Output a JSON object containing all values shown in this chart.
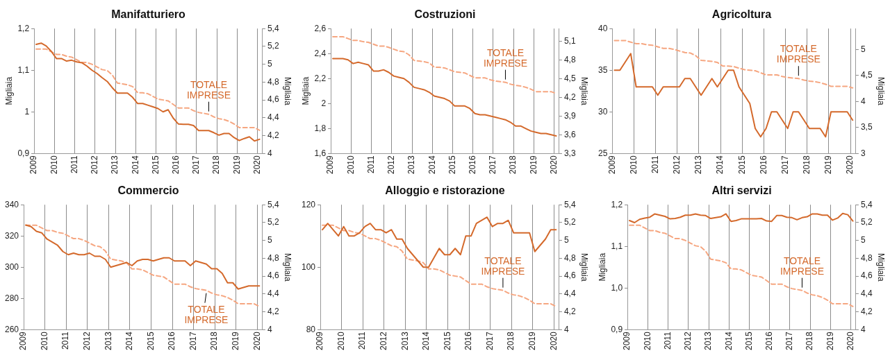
{
  "chart_data": [
    {
      "type": "line",
      "title": "Manifatturiero",
      "ylabel": "Migliaia",
      "y2label": "Migliaia",
      "grid": "x",
      "marker": "none",
      "x": [
        2009.1,
        2009.35,
        2009.6,
        2009.85,
        2010.1,
        2010.35,
        2010.6,
        2010.85,
        2011.1,
        2011.35,
        2011.6,
        2011.85,
        2012.1,
        2012.35,
        2012.6,
        2012.85,
        2013.1,
        2013.35,
        2013.6,
        2013.85,
        2014.1,
        2014.35,
        2014.6,
        2014.85,
        2015.1,
        2015.35,
        2015.6,
        2015.85,
        2016.1,
        2016.35,
        2016.6,
        2016.85,
        2017.1,
        2017.35,
        2017.6,
        2017.85,
        2018.1,
        2018.35,
        2018.6,
        2018.85,
        2019.1,
        2019.35,
        2019.6,
        2019.85,
        2020.1
      ],
      "xlim": [
        2009,
        2020.25
      ],
      "xticks": [
        2009,
        2010,
        2011,
        2012,
        2013,
        2014,
        2015,
        2016,
        2017,
        2018,
        2019,
        2020
      ],
      "ylim": [
        0.9,
        1.2
      ],
      "yticks": [
        {
          "value": 0.9,
          "label": "0,9"
        },
        1,
        {
          "value": 1.1,
          "label": "1,1"
        },
        {
          "value": 1.2,
          "label": "1,2"
        }
      ],
      "y2lim": [
        4,
        5.4
      ],
      "y2ticks": [
        4,
        {
          "value": 4.2,
          "label": "4,2"
        },
        {
          "value": 4.4,
          "label": "4,4"
        },
        {
          "value": 4.6,
          "label": "4,6"
        },
        {
          "value": 4.8,
          "label": "4,8"
        },
        5,
        {
          "value": 5.2,
          "label": "5,2"
        },
        {
          "value": 5.4,
          "label": "5,4"
        }
      ],
      "series": [
        {
          "color": "#d4692b",
          "line_style": "solid",
          "values": [
            1.162,
            1.165,
            1.158,
            1.145,
            1.128,
            1.128,
            1.122,
            1.124,
            1.12,
            1.118,
            1.11,
            1.1,
            1.092,
            1.082,
            1.073,
            1.058,
            1.045,
            1.045,
            1.045,
            1.035,
            1.02,
            1.02,
            1.016,
            1.012,
            1.008,
            1.0,
            1.005,
            0.985,
            0.971,
            0.97,
            0.97,
            0.967,
            0.955,
            0.955,
            0.955,
            0.95,
            0.944,
            0.948,
            0.948,
            0.938,
            0.931,
            0.936,
            0.94,
            0.93,
            0.934
          ]
        },
        {
          "name": "TOTALE IMPRESE",
          "color": "#f6a680",
          "axis": "y2",
          "line_style": "dashed",
          "values": [
            5.17,
            5.17,
            5.17,
            5.14,
            5.11,
            5.11,
            5.09,
            5.08,
            5.05,
            5.02,
            5.02,
            5.0,
            4.97,
            4.94,
            4.93,
            4.88,
            4.79,
            4.78,
            4.77,
            4.75,
            4.68,
            4.68,
            4.67,
            4.64,
            4.61,
            4.6,
            4.59,
            4.55,
            4.51,
            4.51,
            4.51,
            4.48,
            4.46,
            4.45,
            4.44,
            4.41,
            4.39,
            4.38,
            4.36,
            4.33,
            4.29,
            4.29,
            4.29,
            4.29,
            4.26
          ]
        }
      ]
    },
    {
      "type": "line",
      "title": "Costruzioni",
      "ylabel": "Migliaia",
      "y2label": "Migliaia",
      "grid": "x",
      "marker": "none",
      "x": [
        2009.1,
        2009.35,
        2009.6,
        2009.85,
        2010.1,
        2010.35,
        2010.6,
        2010.85,
        2011.1,
        2011.35,
        2011.6,
        2011.85,
        2012.1,
        2012.35,
        2012.6,
        2012.85,
        2013.1,
        2013.35,
        2013.6,
        2013.85,
        2014.1,
        2014.35,
        2014.6,
        2014.85,
        2015.1,
        2015.35,
        2015.6,
        2015.85,
        2016.1,
        2016.35,
        2016.6,
        2016.85,
        2017.1,
        2017.35,
        2017.6,
        2017.85,
        2018.1,
        2018.35,
        2018.6,
        2018.85,
        2019.1,
        2019.35,
        2019.6,
        2019.85,
        2020.1
      ],
      "xlim": [
        2009,
        2020.25
      ],
      "xticks": [
        2009,
        2010,
        2011,
        2012,
        2013,
        2014,
        2015,
        2016,
        2017,
        2018,
        2019,
        2020
      ],
      "ylim": [
        1.6,
        2.6
      ],
      "yticks": [
        {
          "value": 1.6,
          "label": "1,6"
        },
        {
          "value": 1.8,
          "label": "1,8"
        },
        2,
        {
          "value": 2.2,
          "label": "2,2"
        },
        {
          "value": 2.4,
          "label": "2,4"
        },
        {
          "value": 2.6,
          "label": "2,6"
        }
      ],
      "y2lim": [
        3.3,
        5.3
      ],
      "y2ticks": [
        {
          "value": 3.3,
          "label": "3,3"
        },
        {
          "value": 3.6,
          "label": "3,6"
        },
        {
          "value": 3.9,
          "label": "3,9"
        },
        {
          "value": 4.2,
          "label": "4,2"
        },
        {
          "value": 4.5,
          "label": "4,5"
        },
        {
          "value": 4.8,
          "label": "4,8"
        },
        {
          "value": 5.1,
          "label": "5,1"
        }
      ],
      "series": [
        {
          "color": "#d4692b",
          "line_style": "solid",
          "values": [
            2.36,
            2.36,
            2.36,
            2.35,
            2.32,
            2.33,
            2.32,
            2.31,
            2.26,
            2.26,
            2.27,
            2.25,
            2.22,
            2.21,
            2.2,
            2.17,
            2.13,
            2.12,
            2.11,
            2.09,
            2.06,
            2.05,
            2.04,
            2.02,
            1.98,
            1.98,
            1.98,
            1.96,
            1.92,
            1.91,
            1.91,
            1.9,
            1.89,
            1.88,
            1.87,
            1.85,
            1.82,
            1.82,
            1.8,
            1.78,
            1.77,
            1.76,
            1.76,
            1.75,
            1.74
          ]
        },
        {
          "name": "TOTALE IMPRESE",
          "color": "#f6a680",
          "axis": "y2",
          "line_style": "dashed",
          "values": [
            5.17,
            5.17,
            5.17,
            5.14,
            5.11,
            5.11,
            5.09,
            5.08,
            5.05,
            5.02,
            5.02,
            5.0,
            4.97,
            4.94,
            4.93,
            4.88,
            4.79,
            4.78,
            4.77,
            4.75,
            4.68,
            4.68,
            4.67,
            4.64,
            4.61,
            4.6,
            4.59,
            4.55,
            4.51,
            4.51,
            4.51,
            4.48,
            4.46,
            4.45,
            4.44,
            4.41,
            4.39,
            4.38,
            4.36,
            4.33,
            4.29,
            4.29,
            4.29,
            4.29,
            4.26
          ]
        }
      ]
    },
    {
      "type": "line",
      "title": "Agricoltura",
      "y2label": "Migliaia",
      "grid": "x",
      "marker": "none",
      "x": [
        2009.1,
        2009.35,
        2009.6,
        2009.85,
        2010.1,
        2010.35,
        2010.6,
        2010.85,
        2011.1,
        2011.35,
        2011.6,
        2011.85,
        2012.1,
        2012.35,
        2012.6,
        2012.85,
        2013.1,
        2013.35,
        2013.6,
        2013.85,
        2014.1,
        2014.35,
        2014.6,
        2014.85,
        2015.1,
        2015.35,
        2015.6,
        2015.85,
        2016.1,
        2016.35,
        2016.6,
        2016.85,
        2017.1,
        2017.35,
        2017.6,
        2017.85,
        2018.1,
        2018.35,
        2018.6,
        2018.85,
        2019.1,
        2019.35,
        2019.6,
        2019.85,
        2020.1
      ],
      "xlim": [
        2009,
        2020.25
      ],
      "xticks": [
        2009,
        2010,
        2011,
        2012,
        2013,
        2014,
        2015,
        2016,
        2017,
        2018,
        2019,
        2020
      ],
      "ylim": [
        25,
        40
      ],
      "yticks": [
        25,
        30,
        35,
        40
      ],
      "y2lim": [
        3,
        5.4
      ],
      "y2ticks": [
        3,
        {
          "value": 3.5,
          "label": "3,5"
        },
        4,
        {
          "value": 4.5,
          "label": "4,5"
        },
        5
      ],
      "series": [
        {
          "color": "#d4692b",
          "line_style": "solid",
          "values": [
            35,
            35,
            36,
            37,
            33,
            33,
            33,
            33,
            32,
            33,
            33,
            33,
            33,
            34,
            34,
            33,
            32,
            33,
            34,
            33,
            34,
            35,
            35,
            33,
            32,
            31,
            28,
            27,
            28,
            30,
            30,
            29,
            28,
            30,
            30,
            29,
            28,
            28,
            28,
            27,
            30,
            30,
            30,
            30,
            29
          ]
        },
        {
          "name": "TOTALE IMPRESE",
          "color": "#f6a680",
          "axis": "y2",
          "line_style": "dashed",
          "values": [
            5.17,
            5.17,
            5.17,
            5.14,
            5.11,
            5.11,
            5.09,
            5.08,
            5.05,
            5.02,
            5.02,
            5.0,
            4.97,
            4.94,
            4.93,
            4.88,
            4.79,
            4.78,
            4.77,
            4.75,
            4.68,
            4.68,
            4.67,
            4.64,
            4.61,
            4.6,
            4.59,
            4.55,
            4.51,
            4.51,
            4.51,
            4.48,
            4.46,
            4.45,
            4.44,
            4.41,
            4.39,
            4.38,
            4.36,
            4.33,
            4.29,
            4.29,
            4.29,
            4.29,
            4.26
          ]
        }
      ]
    },
    {
      "type": "line",
      "title": "Commercio",
      "y2label": "Migliaia",
      "grid": "x",
      "marker": "none",
      "x": [
        2009.1,
        2009.35,
        2009.6,
        2009.85,
        2010.1,
        2010.35,
        2010.6,
        2010.85,
        2011.1,
        2011.35,
        2011.6,
        2011.85,
        2012.1,
        2012.35,
        2012.6,
        2012.85,
        2013.1,
        2013.35,
        2013.6,
        2013.85,
        2014.1,
        2014.35,
        2014.6,
        2014.85,
        2015.1,
        2015.35,
        2015.6,
        2015.85,
        2016.1,
        2016.35,
        2016.6,
        2016.85,
        2017.1,
        2017.35,
        2017.6,
        2017.85,
        2018.1,
        2018.35,
        2018.6,
        2018.85,
        2019.1,
        2019.35,
        2019.6,
        2019.85,
        2020.1
      ],
      "xlim": [
        2009,
        2020.25
      ],
      "xticks": [
        2009,
        2010,
        2011,
        2012,
        2013,
        2014,
        2015,
        2016,
        2017,
        2018,
        2019,
        2020
      ],
      "ylim": [
        260,
        340
      ],
      "yticks": [
        260,
        280,
        300,
        320,
        340
      ],
      "y2lim": [
        4,
        5.4
      ],
      "y2ticks": [
        4,
        {
          "value": 4.2,
          "label": "4,2"
        },
        {
          "value": 4.4,
          "label": "4,4"
        },
        {
          "value": 4.6,
          "label": "4,6"
        },
        {
          "value": 4.8,
          "label": "4,8"
        },
        5,
        {
          "value": 5.2,
          "label": "5,2"
        },
        {
          "value": 5.4,
          "label": "5,4"
        }
      ],
      "series": [
        {
          "color": "#d4692b",
          "line_style": "solid",
          "values": [
            327,
            326,
            323,
            322,
            318,
            316,
            314,
            310,
            308,
            309,
            308,
            308,
            309,
            307,
            307,
            305,
            300,
            301,
            302,
            303,
            301,
            304,
            305,
            305,
            304,
            305,
            306,
            306,
            304,
            304,
            304,
            301,
            304,
            303,
            302,
            299,
            299,
            296,
            290,
            290,
            286,
            287,
            288,
            288,
            288
          ]
        },
        {
          "name": "TOTALE IMPRESE",
          "color": "#f6a680",
          "axis": "y2",
          "line_style": "dashed",
          "values": [
            5.17,
            5.17,
            5.17,
            5.14,
            5.11,
            5.11,
            5.09,
            5.08,
            5.05,
            5.02,
            5.02,
            5.0,
            4.97,
            4.94,
            4.93,
            4.88,
            4.79,
            4.78,
            4.77,
            4.75,
            4.68,
            4.68,
            4.67,
            4.64,
            4.61,
            4.6,
            4.59,
            4.55,
            4.51,
            4.51,
            4.51,
            4.48,
            4.46,
            4.45,
            4.44,
            4.41,
            4.39,
            4.38,
            4.36,
            4.33,
            4.29,
            4.29,
            4.29,
            4.29,
            4.26
          ]
        }
      ]
    },
    {
      "type": "line",
      "title": "Alloggio e ristorazione",
      "y2label": "Migliaia",
      "grid": "x",
      "marker": "none",
      "x": [
        2009.1,
        2009.35,
        2009.6,
        2009.85,
        2010.1,
        2010.35,
        2010.6,
        2010.85,
        2011.1,
        2011.35,
        2011.6,
        2011.85,
        2012.1,
        2012.35,
        2012.6,
        2012.85,
        2013.1,
        2013.35,
        2013.6,
        2013.85,
        2014.1,
        2014.35,
        2014.6,
        2014.85,
        2015.1,
        2015.35,
        2015.6,
        2015.85,
        2016.1,
        2016.35,
        2016.6,
        2016.85,
        2017.1,
        2017.35,
        2017.6,
        2017.85,
        2018.1,
        2018.35,
        2018.6,
        2018.85,
        2019.1,
        2019.35,
        2019.6,
        2019.85,
        2020.1
      ],
      "xlim": [
        2009,
        2020.25
      ],
      "xticks": [
        2009,
        2010,
        2011,
        2012,
        2013,
        2014,
        2015,
        2016,
        2017,
        2018,
        2019,
        2020
      ],
      "ylim": [
        80,
        120
      ],
      "yticks": [
        80,
        100,
        120
      ],
      "y2lim": [
        4,
        5.4
      ],
      "y2ticks": [
        4,
        {
          "value": 4.2,
          "label": "4,2"
        },
        {
          "value": 4.4,
          "label": "4,4"
        },
        {
          "value": 4.6,
          "label": "4,6"
        },
        {
          "value": 4.8,
          "label": "4,8"
        },
        5,
        {
          "value": 5.2,
          "label": "5,2"
        },
        {
          "value": 5.4,
          "label": "5,4"
        }
      ],
      "series": [
        {
          "color": "#d4692b",
          "line_style": "solid",
          "values": [
            112,
            114,
            112,
            110,
            113,
            110,
            110,
            111,
            113,
            114,
            112,
            112,
            111,
            112,
            109,
            109,
            106,
            104,
            102,
            100,
            100,
            103,
            106,
            104,
            104,
            106,
            104,
            110,
            110,
            114,
            115,
            116,
            113,
            114,
            114,
            115,
            111,
            111,
            111,
            111,
            105,
            107,
            109,
            112,
            112
          ]
        },
        {
          "name": "TOTALE IMPRESE",
          "color": "#f6a680",
          "axis": "y2",
          "line_style": "dashed",
          "values": [
            5.17,
            5.17,
            5.17,
            5.14,
            5.11,
            5.11,
            5.09,
            5.08,
            5.05,
            5.02,
            5.02,
            5.0,
            4.97,
            4.94,
            4.93,
            4.88,
            4.79,
            4.78,
            4.77,
            4.75,
            4.68,
            4.68,
            4.67,
            4.64,
            4.61,
            4.6,
            4.59,
            4.55,
            4.51,
            4.51,
            4.51,
            4.48,
            4.46,
            4.45,
            4.44,
            4.41,
            4.39,
            4.38,
            4.36,
            4.33,
            4.29,
            4.29,
            4.29,
            4.29,
            4.26
          ]
        }
      ]
    },
    {
      "type": "line",
      "title": "Altri servizi",
      "ylabel": "Migliaia",
      "y2label": "Migliaia",
      "grid": "x",
      "marker": "none",
      "x": [
        2009.1,
        2009.35,
        2009.6,
        2009.85,
        2010.1,
        2010.35,
        2010.6,
        2010.85,
        2011.1,
        2011.35,
        2011.6,
        2011.85,
        2012.1,
        2012.35,
        2012.6,
        2012.85,
        2013.1,
        2013.35,
        2013.6,
        2013.85,
        2014.1,
        2014.35,
        2014.6,
        2014.85,
        2015.1,
        2015.35,
        2015.6,
        2015.85,
        2016.1,
        2016.35,
        2016.6,
        2016.85,
        2017.1,
        2017.35,
        2017.6,
        2017.85,
        2018.1,
        2018.35,
        2018.6,
        2018.85,
        2019.1,
        2019.35,
        2019.6,
        2019.85,
        2020.1
      ],
      "xlim": [
        2009,
        2020.25
      ],
      "xticks": [
        2009,
        2010,
        2011,
        2012,
        2013,
        2014,
        2015,
        2016,
        2017,
        2018,
        2019,
        2020
      ],
      "ylim": [
        0.9,
        1.2
      ],
      "yticks": [
        {
          "value": 0.9,
          "label": "0,9"
        },
        {
          "value": 1.0,
          "label": "1,0"
        },
        {
          "value": 1.1,
          "label": "1,1"
        },
        {
          "value": 1.2,
          "label": "1,2"
        }
      ],
      "y2lim": [
        4,
        5.4
      ],
      "y2ticks": [
        4,
        {
          "value": 4.2,
          "label": "4,2"
        },
        {
          "value": 4.4,
          "label": "4,4"
        },
        {
          "value": 4.6,
          "label": "4,6"
        },
        {
          "value": 4.8,
          "label": "4,8"
        },
        5,
        {
          "value": 5.2,
          "label": "5,2"
        },
        {
          "value": 5.4,
          "label": "5,4"
        }
      ],
      "series": [
        {
          "color": "#d4692b",
          "line_style": "solid",
          "values": [
            1.162,
            1.157,
            1.165,
            1.168,
            1.17,
            1.178,
            1.175,
            1.172,
            1.166,
            1.167,
            1.17,
            1.175,
            1.175,
            1.178,
            1.175,
            1.174,
            1.167,
            1.169,
            1.171,
            1.178,
            1.16,
            1.162,
            1.166,
            1.166,
            1.166,
            1.166,
            1.167,
            1.161,
            1.16,
            1.174,
            1.174,
            1.17,
            1.169,
            1.164,
            1.169,
            1.171,
            1.178,
            1.178,
            1.175,
            1.175,
            1.163,
            1.168,
            1.179,
            1.176,
            1.161
          ]
        },
        {
          "name": "TOTALE IMPRESE",
          "color": "#f6a680",
          "axis": "y2",
          "line_style": "dashed",
          "values": [
            5.17,
            5.17,
            5.17,
            5.14,
            5.11,
            5.11,
            5.09,
            5.08,
            5.05,
            5.02,
            5.02,
            5.0,
            4.97,
            4.94,
            4.93,
            4.88,
            4.79,
            4.78,
            4.77,
            4.75,
            4.68,
            4.68,
            4.67,
            4.64,
            4.61,
            4.6,
            4.59,
            4.55,
            4.51,
            4.51,
            4.51,
            4.48,
            4.46,
            4.45,
            4.44,
            4.41,
            4.39,
            4.38,
            4.36,
            4.33,
            4.29,
            4.29,
            4.29,
            4.29,
            4.26
          ]
        }
      ]
    }
  ]
}
